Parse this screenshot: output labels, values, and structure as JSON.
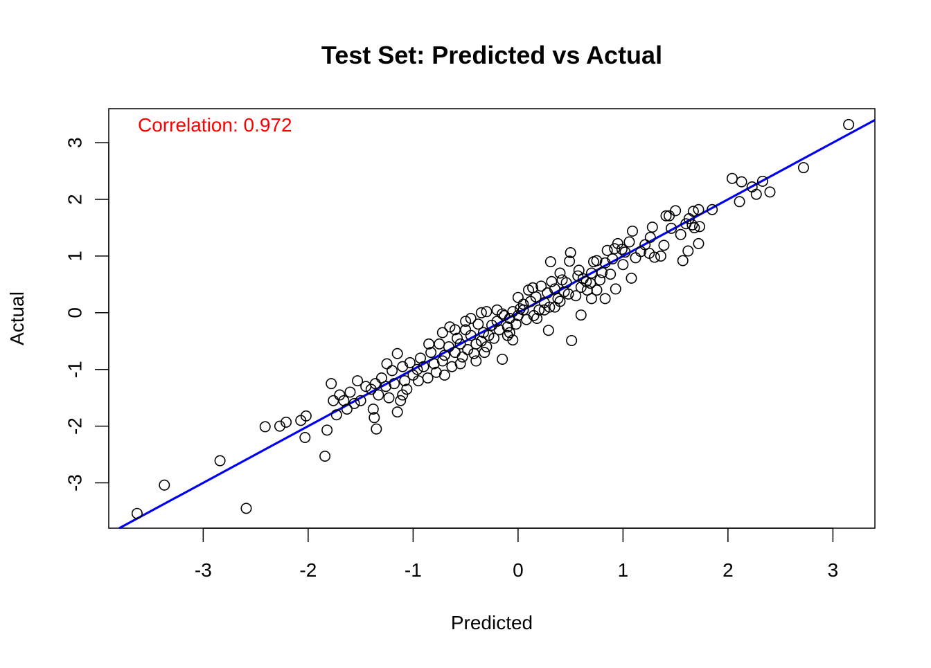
{
  "chart_data": {
    "type": "scatter",
    "title": "Test Set: Predicted vs Actual",
    "xlabel": "Predicted",
    "ylabel": "Actual",
    "xlim": [
      -3.9,
      3.4
    ],
    "ylim": [
      -3.8,
      3.6
    ],
    "x_ticks": [
      -3,
      -2,
      -1,
      0,
      1,
      2,
      3
    ],
    "x_tick_labels": [
      "-3",
      "-2",
      "-1",
      "0",
      "1",
      "2",
      "3"
    ],
    "y_ticks": [
      -3,
      -2,
      -1,
      0,
      1,
      2,
      3
    ],
    "y_tick_labels": [
      "-3",
      "-2",
      "-1",
      "0",
      "1",
      "2",
      "3"
    ],
    "grid": false,
    "annotation": {
      "text": "Correlation: 0.972",
      "color": "#ff0000",
      "placement": "top-left"
    },
    "fit_line": {
      "intercept": 0.0,
      "slope": 1.0,
      "color": "#0000ee"
    },
    "point_color": "#000000",
    "points": [
      [
        3.15,
        3.32
      ],
      [
        2.72,
        2.56
      ],
      [
        2.33,
        2.32
      ],
      [
        2.4,
        2.13
      ],
      [
        2.27,
        2.09
      ],
      [
        2.23,
        2.22
      ],
      [
        2.13,
        2.31
      ],
      [
        2.04,
        2.37
      ],
      [
        2.11,
        1.96
      ],
      [
        1.85,
        1.82
      ],
      [
        1.72,
        1.82
      ],
      [
        1.67,
        1.79
      ],
      [
        1.73,
        1.52
      ],
      [
        1.66,
        1.55
      ],
      [
        1.6,
        1.57
      ],
      [
        1.63,
        1.66
      ],
      [
        1.72,
        1.22
      ],
      [
        1.62,
        1.09
      ],
      [
        1.57,
        0.92
      ],
      [
        1.5,
        1.8
      ],
      [
        1.44,
        1.71
      ],
      [
        1.41,
        1.71
      ],
      [
        1.46,
        1.49
      ],
      [
        1.39,
        1.19
      ],
      [
        1.36,
        1.0
      ],
      [
        1.28,
        1.51
      ],
      [
        1.26,
        1.33
      ],
      [
        1.21,
        1.2
      ],
      [
        1.17,
        1.08
      ],
      [
        1.09,
        1.44
      ],
      [
        1.06,
        1.25
      ],
      [
        1.02,
        1.07
      ],
      [
        0.99,
        1.12
      ],
      [
        0.95,
        1.22
      ],
      [
        0.92,
        1.13
      ],
      [
        0.9,
        0.95
      ],
      [
        0.85,
        1.1
      ],
      [
        0.83,
        0.88
      ],
      [
        0.8,
        0.71
      ],
      [
        0.78,
        0.58
      ],
      [
        0.75,
        0.92
      ],
      [
        0.72,
        0.9
      ],
      [
        0.7,
        0.7
      ],
      [
        0.69,
        0.52
      ],
      [
        0.66,
        0.4
      ],
      [
        0.62,
        0.6
      ],
      [
        0.6,
        0.45
      ],
      [
        0.57,
        0.65
      ],
      [
        0.55,
        0.3
      ],
      [
        0.5,
        1.06
      ],
      [
        0.49,
        0.91
      ],
      [
        0.46,
        0.53
      ],
      [
        0.44,
        0.37
      ],
      [
        0.4,
        0.7
      ],
      [
        0.38,
        0.25
      ],
      [
        0.35,
        0.42
      ],
      [
        0.32,
        0.55
      ],
      [
        0.3,
        0.1
      ],
      [
        0.28,
        0.35
      ],
      [
        0.25,
        0.18
      ],
      [
        0.22,
        0.47
      ],
      [
        0.2,
        0.05
      ],
      [
        0.17,
        0.28
      ],
      [
        0.15,
        -0.05
      ],
      [
        0.12,
        0.2
      ],
      [
        0.1,
        0.4
      ],
      [
        0.08,
        -0.12
      ],
      [
        0.05,
        0.15
      ],
      [
        0.02,
        0.07
      ],
      [
        0.0,
        0.27
      ],
      [
        -0.02,
        -0.2
      ],
      [
        -0.05,
        0.02
      ],
      [
        -0.08,
        -0.1
      ],
      [
        -0.1,
        -0.25
      ],
      [
        -0.13,
        -0.05
      ],
      [
        -0.15,
        -0.82
      ],
      [
        -0.18,
        -0.3
      ],
      [
        -0.2,
        -0.15
      ],
      [
        -0.23,
        -0.45
      ],
      [
        -0.25,
        -0.22
      ],
      [
        -0.28,
        -0.4
      ],
      [
        -0.3,
        -0.6
      ],
      [
        -0.33,
        -0.35
      ],
      [
        -0.35,
        -0.5
      ],
      [
        -0.38,
        -0.2
      ],
      [
        -0.4,
        -0.55
      ],
      [
        -0.42,
        -0.72
      ],
      [
        -0.45,
        -0.4
      ],
      [
        -0.48,
        -0.65
      ],
      [
        -0.5,
        -0.3
      ],
      [
        -0.53,
        -0.78
      ],
      [
        -0.55,
        -0.55
      ],
      [
        -0.58,
        -0.45
      ],
      [
        -0.6,
        -0.7
      ],
      [
        -0.63,
        -0.95
      ],
      [
        -0.66,
        -0.6
      ],
      [
        -0.7,
        -0.75
      ],
      [
        -0.72,
        -0.85
      ],
      [
        -0.75,
        -0.55
      ],
      [
        -0.78,
        -1.05
      ],
      [
        -0.8,
        -0.9
      ],
      [
        -0.83,
        -0.7
      ],
      [
        -0.86,
        -1.15
      ],
      [
        -0.9,
        -0.95
      ],
      [
        -0.93,
        -0.8
      ],
      [
        -0.96,
        -1.0
      ],
      [
        -1.0,
        -1.1
      ],
      [
        -1.03,
        -0.88
      ],
      [
        -1.06,
        -1.35
      ],
      [
        -1.08,
        -1.2
      ],
      [
        -1.1,
        -1.45
      ],
      [
        -1.12,
        -1.55
      ],
      [
        -1.15,
        -0.72
      ],
      [
        -1.18,
        -1.25
      ],
      [
        -1.2,
        -1.02
      ],
      [
        -1.23,
        -1.5
      ],
      [
        -1.26,
        -1.3
      ],
      [
        -1.3,
        -1.15
      ],
      [
        -1.33,
        -1.45
      ],
      [
        -1.36,
        -1.25
      ],
      [
        -1.38,
        -1.7
      ],
      [
        -1.4,
        -1.35
      ],
      [
        -1.45,
        -1.3
      ],
      [
        -1.5,
        -1.55
      ],
      [
        -1.53,
        -1.2
      ],
      [
        -1.56,
        -1.6
      ],
      [
        -1.6,
        -1.4
      ],
      [
        -1.63,
        -1.7
      ],
      [
        -1.66,
        -1.55
      ],
      [
        -1.7,
        -1.45
      ],
      [
        -1.73,
        -1.8
      ],
      [
        -1.76,
        -1.55
      ],
      [
        -1.78,
        -1.25
      ],
      [
        -1.84,
        -2.53
      ],
      [
        -1.82,
        -2.07
      ],
      [
        -1.35,
        -2.05
      ],
      [
        -1.37,
        -1.85
      ],
      [
        -1.15,
        -1.75
      ],
      [
        -2.02,
        -1.82
      ],
      [
        -2.03,
        -2.2
      ],
      [
        -2.07,
        -1.9
      ],
      [
        -2.21,
        -1.93
      ],
      [
        -2.27,
        -2.0
      ],
      [
        -2.41,
        -2.01
      ],
      [
        -2.59,
        -3.45
      ],
      [
        -2.84,
        -2.61
      ],
      [
        -3.37,
        -3.04
      ],
      [
        -3.63,
        -3.54
      ],
      [
        0.51,
        -0.49
      ],
      [
        0.29,
        -0.31
      ],
      [
        0.6,
        -0.04
      ],
      [
        0.83,
        0.25
      ],
      [
        0.93,
        0.42
      ],
      [
        1.08,
        0.61
      ],
      [
        -0.05,
        -0.48
      ],
      [
        -0.08,
        -0.35
      ],
      [
        0.31,
        0.9
      ],
      [
        0.14,
        0.44
      ],
      [
        0.48,
        0.33
      ],
      [
        0.7,
        0.25
      ],
      [
        -0.2,
        0.05
      ],
      [
        -0.35,
        0.0
      ],
      [
        -0.45,
        -0.1
      ],
      [
        -0.6,
        -0.3
      ],
      [
        -0.72,
        -0.35
      ],
      [
        0.0,
        -0.05
      ],
      [
        0.35,
        0.1
      ],
      [
        0.18,
        -0.1
      ],
      [
        0.42,
        0.58
      ],
      [
        0.58,
        0.75
      ],
      [
        0.75,
        0.4
      ],
      [
        0.88,
        0.68
      ],
      [
        1.0,
        0.85
      ],
      [
        1.12,
        0.97
      ],
      [
        1.25,
        1.05
      ],
      [
        1.3,
        0.98
      ],
      [
        1.55,
        1.38
      ],
      [
        1.68,
        1.5
      ],
      [
        -0.5,
        -0.15
      ],
      [
        -0.65,
        -0.25
      ],
      [
        -0.85,
        -0.55
      ],
      [
        -0.95,
        -1.2
      ],
      [
        -1.1,
        -0.95
      ],
      [
        -1.25,
        -0.9
      ],
      [
        -0.3,
        0.02
      ],
      [
        -0.15,
        -0.02
      ],
      [
        0.05,
        0.05
      ],
      [
        0.25,
        0.05
      ],
      [
        0.4,
        0.2
      ],
      [
        0.65,
        0.55
      ],
      [
        -0.4,
        -0.85
      ],
      [
        -0.55,
        -0.9
      ],
      [
        -0.7,
        -1.1
      ],
      [
        -0.32,
        -0.7
      ],
      [
        -0.1,
        -0.4
      ]
    ]
  }
}
